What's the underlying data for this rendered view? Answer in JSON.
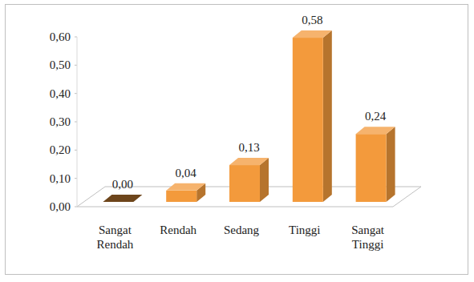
{
  "chart_data": {
    "type": "bar",
    "categories": [
      "Sangat Rendah",
      "Rendah",
      "Sedang",
      "Tinggi",
      "Sangat Tinggi"
    ],
    "values": [
      0.0,
      0.04,
      0.13,
      0.58,
      0.24
    ],
    "value_labels": [
      "0,00",
      "0,04",
      "0,13",
      "0,58",
      "0,24"
    ],
    "color": "#f39a3c",
    "ylim": [
      0,
      0.6
    ],
    "yticks": [
      {
        "value": 0,
        "label": "0,00"
      },
      {
        "value": 0.1,
        "label": "0,10"
      },
      {
        "value": 0.2,
        "label": "0,20"
      },
      {
        "value": 0.3,
        "label": "0,30"
      },
      {
        "value": 0.4,
        "label": "0,40"
      },
      {
        "value": 0.5,
        "label": "0,50"
      },
      {
        "value": 0.6,
        "label": "0,60"
      }
    ],
    "grid": false,
    "data_labels": true
  }
}
